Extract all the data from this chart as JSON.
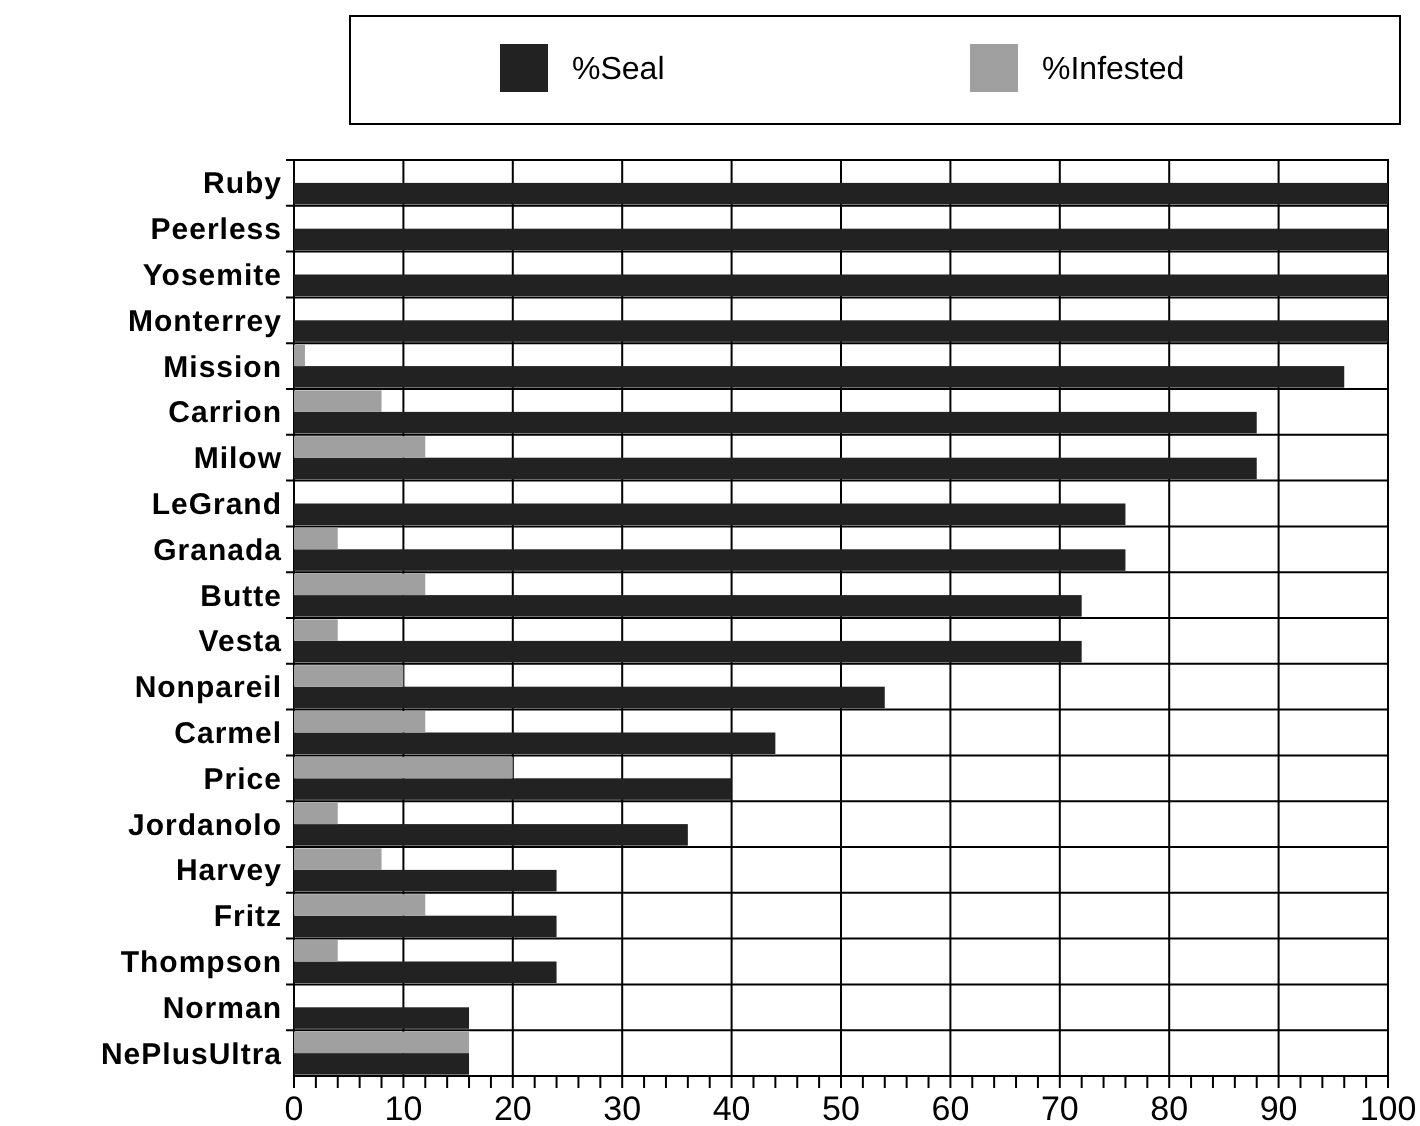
{
  "chart_data": {
    "type": "bar",
    "orientation": "horizontal",
    "categories": [
      "Ruby",
      "Peerless",
      "Yosemite",
      "Monterrey",
      "Mission",
      "Carrion",
      "Milow",
      "LeGrand",
      "Granada",
      "Butte",
      "Vesta",
      "Nonpareil",
      "Carmel",
      "Price",
      "Jordanolo",
      "Harvey",
      "Fritz",
      "Thompson",
      "Norman",
      "NePlusUltra"
    ],
    "series": [
      {
        "name": "%Seal",
        "color": "#222222",
        "values": [
          100,
          100,
          100,
          100,
          96,
          88,
          88,
          76,
          76,
          72,
          72,
          54,
          44,
          40,
          36,
          24,
          24,
          24,
          16,
          16
        ]
      },
      {
        "name": "%Infested",
        "color": "#a0a0a0",
        "values": [
          0,
          0,
          0,
          0,
          1,
          8,
          12,
          0,
          4,
          12,
          4,
          10,
          12,
          20,
          4,
          8,
          12,
          4,
          0,
          16
        ]
      }
    ],
    "xlim": [
      0,
      100
    ],
    "xticks": [
      0,
      {
        "value": 2,
        "label": null
      },
      {
        "value": 4,
        "label": null
      },
      {
        "value": 6,
        "label": null
      },
      {
        "value": 8,
        "label": null
      },
      10,
      {
        "value": 12,
        "label": null
      },
      {
        "value": 14,
        "label": null
      },
      {
        "value": 16,
        "label": null
      },
      {
        "value": 18,
        "label": null
      },
      20,
      {
        "value": 22,
        "label": null
      },
      {
        "value": 24,
        "label": null
      },
      {
        "value": 26,
        "label": null
      },
      {
        "value": 28,
        "label": null
      },
      30,
      {
        "value": 32,
        "label": null
      },
      {
        "value": 34,
        "label": null
      },
      {
        "value": 36,
        "label": null
      },
      {
        "value": 38,
        "label": null
      },
      40,
      {
        "value": 42,
        "label": null
      },
      {
        "value": 44,
        "label": null
      },
      {
        "value": 46,
        "label": null
      },
      {
        "value": 48,
        "label": null
      },
      50,
      {
        "value": 52,
        "label": null
      },
      {
        "value": 54,
        "label": null
      },
      {
        "value": 56,
        "label": null
      },
      {
        "value": 58,
        "label": null
      },
      60,
      {
        "value": 62,
        "label": null
      },
      {
        "value": 64,
        "label": null
      },
      {
        "value": 66,
        "label": null
      },
      {
        "value": 68,
        "label": null
      },
      70,
      {
        "value": 72,
        "label": null
      },
      {
        "value": 74,
        "label": null
      },
      {
        "value": 76,
        "label": null
      },
      {
        "value": 78,
        "label": null
      },
      80,
      {
        "value": 82,
        "label": null
      },
      {
        "value": 84,
        "label": null
      },
      {
        "value": 86,
        "label": null
      },
      {
        "value": 88,
        "label": null
      },
      90,
      {
        "value": 92,
        "label": null
      },
      {
        "value": 94,
        "label": null
      },
      {
        "value": 96,
        "label": null
      },
      {
        "value": 98,
        "label": null
      },
      100
    ],
    "grid": true,
    "legend": "top"
  }
}
